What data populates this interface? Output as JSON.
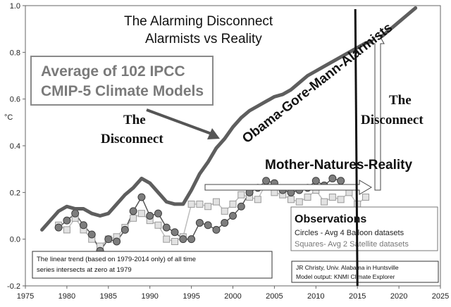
{
  "chart_data": {
    "type": "line",
    "title_lines": [
      "The Alarming Disconnect",
      "Alarmists vs Reality"
    ],
    "ylabel": "°C",
    "xlim": [
      1975,
      2025
    ],
    "ylim": [
      -0.2,
      1.0
    ],
    "x_ticks": [
      "1975",
      "1980",
      "1985",
      "1990",
      "1995",
      "2000",
      "2005",
      "2010",
      "2015",
      "2020",
      "2025"
    ],
    "y_ticks": [
      "1.0",
      "0.8",
      "0.6",
      "0.4",
      "0.2",
      "0.0",
      "-0.2"
    ],
    "model_box": [
      "Average of 102 IPCC",
      "CMIP-5 Climate Models"
    ],
    "series": [
      {
        "name": "Obama-Gore-Mann-Alarmists",
        "x": [
          1977,
          1978,
          1979,
          1980,
          1981,
          1982,
          1983,
          1984,
          1985,
          1986,
          1987,
          1988,
          1989,
          1990,
          1991,
          1992,
          1993,
          1994,
          1995,
          1996,
          1997,
          1998,
          1999,
          2000,
          2001,
          2002,
          2003,
          2004,
          2005,
          2006,
          2007,
          2008,
          2009,
          2010,
          2011,
          2012,
          2013,
          2014,
          2015,
          2016,
          2017,
          2018,
          2019,
          2020,
          2021,
          2022
        ],
        "values": [
          0.04,
          0.08,
          0.12,
          0.14,
          0.13,
          0.13,
          0.11,
          0.1,
          0.11,
          0.15,
          0.19,
          0.22,
          0.26,
          0.24,
          0.2,
          0.16,
          0.15,
          0.15,
          0.21,
          0.28,
          0.33,
          0.39,
          0.43,
          0.48,
          0.52,
          0.55,
          0.57,
          0.59,
          0.61,
          0.62,
          0.64,
          0.67,
          0.7,
          0.72,
          0.74,
          0.76,
          0.78,
          0.8,
          0.82,
          0.84,
          0.85,
          0.87,
          0.9,
          0.93,
          0.96,
          0.99
        ]
      },
      {
        "name": "Circles - Avg 4 Balloon datasets",
        "x": [
          1979,
          1980,
          1981,
          1982,
          1983,
          1984,
          1985,
          1986,
          1987,
          1988,
          1989,
          1990,
          1991,
          1992,
          1993,
          1994,
          1995,
          1996,
          1997,
          1998,
          1999,
          2000,
          2001,
          2002,
          2003,
          2004,
          2005,
          2006,
          2007,
          2008,
          2009,
          2010,
          2011,
          2012,
          2013
        ],
        "values": [
          0.05,
          0.08,
          0.11,
          0.06,
          0.02,
          -0.05,
          0.0,
          -0.01,
          0.04,
          0.12,
          0.18,
          0.1,
          0.11,
          0.05,
          0.03,
          0.0,
          0.0,
          0.07,
          0.06,
          0.04,
          0.07,
          0.1,
          0.14,
          0.2,
          0.22,
          0.25,
          0.24,
          0.21,
          0.2,
          0.21,
          0.22,
          0.25,
          0.23,
          0.26,
          0.25
        ]
      },
      {
        "name": "Squares- Avg 2 Satellite datasets",
        "x": [
          1979,
          1980,
          1981,
          1982,
          1983,
          1984,
          1985,
          1986,
          1987,
          1988,
          1989,
          1990,
          1991,
          1992,
          1993,
          1994,
          1995,
          1996,
          1997,
          1998,
          1999,
          2000,
          2001,
          2002,
          2003,
          2004,
          2005,
          2006,
          2007,
          2008,
          2009,
          2010,
          2011,
          2012,
          2013,
          2014,
          2015,
          2016
        ],
        "values": [
          0.06,
          0.04,
          0.09,
          0.04,
          0.0,
          -0.03,
          0.0,
          0.01,
          0.05,
          0.09,
          0.11,
          0.08,
          0.06,
          0.0,
          -0.01,
          0.01,
          0.15,
          0.15,
          0.14,
          0.16,
          0.12,
          0.15,
          0.19,
          0.18,
          0.17,
          0.24,
          0.2,
          0.19,
          0.17,
          0.16,
          0.18,
          0.21,
          0.16,
          0.18,
          0.17,
          0.2,
          0.15,
          0.18
        ]
      }
    ],
    "reference_line_year": 2015,
    "annotations": {
      "the_disconnect_left": [
        "The",
        "Disconnect"
      ],
      "the_disconnect_right": [
        "The",
        "Disconnect"
      ],
      "alarmists_label": "Obama-Gore-Mann-Alarmists",
      "reality_label": "Mother-Natures-Reality",
      "trend_note": [
        "The linear trend (based on 1979-2014 only) of all time",
        "series intersects at zero at 1979"
      ],
      "observations": {
        "title": "Observations",
        "circles": "Circles - Avg 4 Balloon datasets",
        "squares": "Squares- Avg 2 Satellite datasets"
      },
      "credit": [
        "JR Christy, Univ. Alabama in Huntsville",
        "Model output: KNMI Climate Explorer"
      ]
    }
  }
}
